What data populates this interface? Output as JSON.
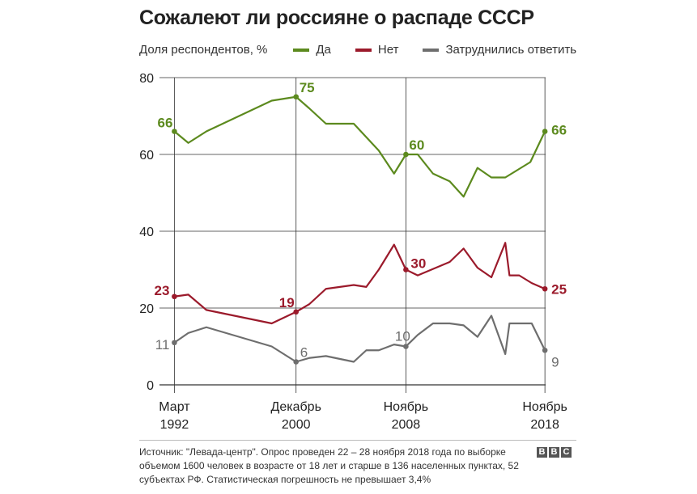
{
  "title": "Сожалеют ли россияне о распаде СССР",
  "ylabel": "Доля респондентов, %",
  "colors": {
    "yes": "#5c8a1e",
    "no": "#9b1a2b",
    "unsure": "#6e6e6e",
    "grid": "#333333"
  },
  "chart_data": {
    "type": "line",
    "title": "Сожалеют ли россияне о распаде СССР",
    "ylabel": "Доля респондентов, %",
    "ylim": [
      0,
      80
    ],
    "yticks": [
      0,
      20,
      40,
      60,
      80
    ],
    "xlim": [
      1992.0,
      2018.9
    ],
    "xticks": [
      {
        "x": 1992.2,
        "label": [
          "Март",
          "1992"
        ]
      },
      {
        "x": 2000.95,
        "label": [
          "Декабрь",
          "2000"
        ]
      },
      {
        "x": 2008.85,
        "label": [
          "Ноябрь",
          "2008"
        ]
      },
      {
        "x": 2018.85,
        "label": [
          "Ноябрь",
          "2018"
        ]
      }
    ],
    "legend": "top",
    "series": [
      {
        "name": "Да",
        "key": "yes",
        "x": [
          1992.2,
          1993.2,
          1994.5,
          1999.2,
          2000.95,
          2001.9,
          2003.1,
          2005.1,
          2006.9,
          2008.0,
          2008.85,
          2009.7,
          2010.8,
          2012.0,
          2013.0,
          2014.0,
          2015.0,
          2016.0,
          2016.9,
          2017.8,
          2018.85
        ],
        "y": [
          66,
          63,
          66,
          74,
          75,
          72,
          68,
          68,
          61,
          55,
          60,
          60,
          55,
          53,
          49,
          56.5,
          54,
          54,
          56,
          58,
          66
        ],
        "labels": [
          {
            "i": 0,
            "text": "66"
          },
          {
            "i": 4,
            "text": "75"
          },
          {
            "i": 10,
            "text": "60"
          },
          {
            "i": 20,
            "text": "66"
          }
        ]
      },
      {
        "name": "Нет",
        "key": "no",
        "x": [
          1992.2,
          1993.2,
          1994.5,
          1999.2,
          2000.95,
          2001.9,
          2003.1,
          2005.1,
          2006.0,
          2006.9,
          2008.0,
          2008.85,
          2009.7,
          2012.0,
          2013.0,
          2014.0,
          2015.0,
          2016.0,
          2016.3,
          2017.0,
          2017.9,
          2018.85
        ],
        "y": [
          23,
          23.5,
          19.5,
          16,
          19,
          21,
          25,
          26,
          25.5,
          30,
          36.5,
          30,
          28.5,
          32,
          35.5,
          30.5,
          28,
          37,
          28.5,
          28.5,
          26.5,
          25
        ],
        "labels": [
          {
            "i": 0,
            "text": "23"
          },
          {
            "i": 4,
            "text": "19"
          },
          {
            "i": 11,
            "text": "30"
          },
          {
            "i": 21,
            "text": "25"
          }
        ]
      },
      {
        "name": "Затруднились ответить",
        "key": "unsure",
        "x": [
          1992.2,
          1993.2,
          1994.5,
          1999.2,
          2000.95,
          2001.9,
          2003.1,
          2005.1,
          2006.0,
          2006.9,
          2008.0,
          2008.85,
          2009.7,
          2010.8,
          2012.0,
          2013.0,
          2014.0,
          2015.0,
          2016.0,
          2016.3,
          2017.0,
          2017.9,
          2018.85
        ],
        "y": [
          11,
          13.5,
          15,
          10,
          6,
          7,
          7.5,
          6,
          9,
          9,
          10.5,
          10,
          13,
          16,
          16,
          15.5,
          12.5,
          18,
          8,
          16,
          16,
          16,
          9
        ],
        "labels": [
          {
            "i": 0,
            "text": "11"
          },
          {
            "i": 4,
            "text": "6"
          },
          {
            "i": 11,
            "text": "10"
          },
          {
            "i": 22,
            "text": "9"
          }
        ]
      }
    ]
  },
  "source": "Источник: \"Левада-центр\". Опрос проведен 22 – 28 ноября 2018 года по выборке объемом 1600 человек в возрасте от 18 лет и старше в 136 населенных пунктах, 52 субъектах РФ. Статистическая погрешность не превышает 3,4%",
  "brand": [
    "B",
    "B",
    "C"
  ]
}
